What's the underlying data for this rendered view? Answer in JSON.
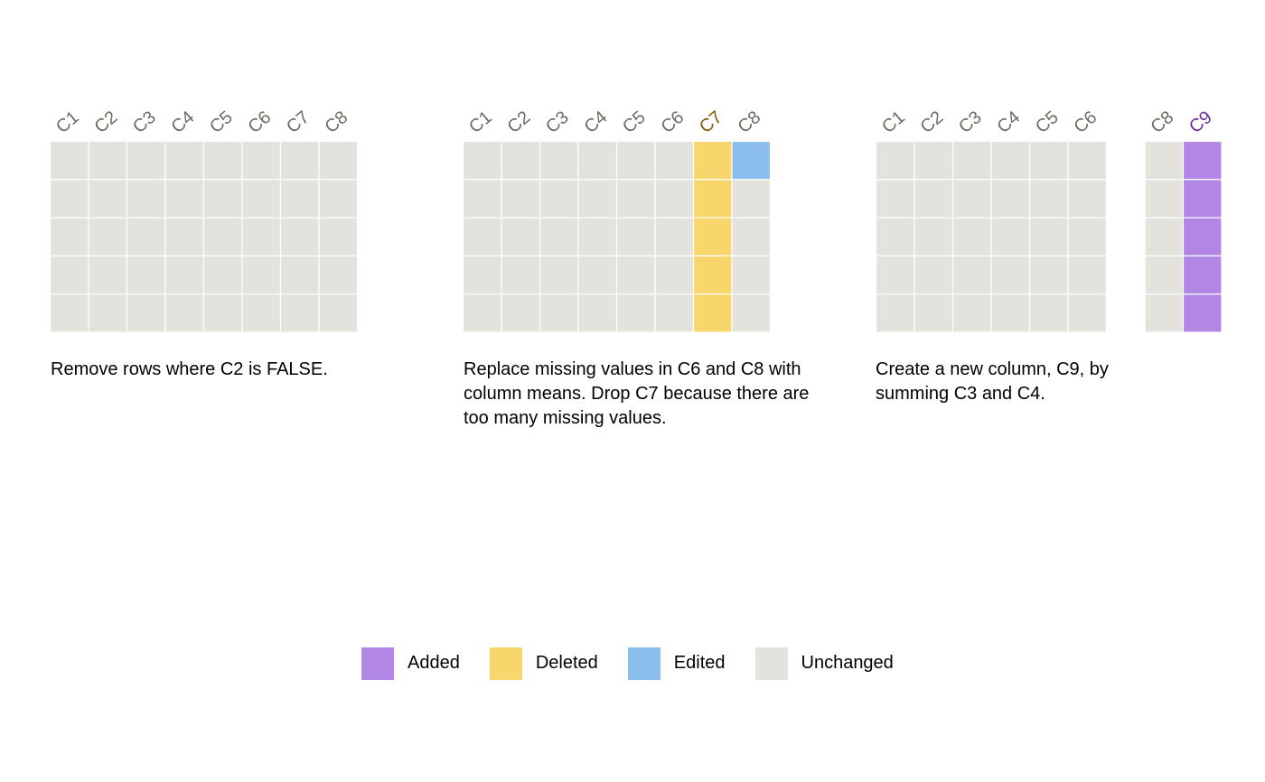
{
  "colors": {
    "added": "#b186e4",
    "deleted": "#f8d66c",
    "edited": "#8bbdee",
    "unchanged": "#e4e2dd",
    "header_default": "#6e6b62",
    "header_deleted": "#7a5f00",
    "header_added": "#6f2a9d"
  },
  "panels": [
    {
      "caption": "Remove rows where C2 is FALSE.",
      "columns": [
        {
          "name": "C1",
          "status": "unchanged"
        },
        {
          "name": "C2",
          "status": "unchanged"
        },
        {
          "name": "C3",
          "status": "unchanged"
        },
        {
          "name": "C4",
          "status": "unchanged"
        },
        {
          "name": "C5",
          "status": "unchanged"
        },
        {
          "name": "C6",
          "status": "unchanged"
        },
        {
          "name": "C7",
          "status": "unchanged"
        },
        {
          "name": "C8",
          "status": "unchanged"
        }
      ],
      "rows": 5
    },
    {
      "caption": "Replace missing values in C6 and C8 with column means. Drop C7 because there are too many missing values.",
      "columns": [
        {
          "name": "C1",
          "status": "unchanged"
        },
        {
          "name": "C2",
          "status": "unchanged"
        },
        {
          "name": "C3",
          "status": "unchanged"
        },
        {
          "name": "C4",
          "status": "unchanged"
        },
        {
          "name": "C5",
          "status": "unchanged"
        },
        {
          "name": "C6",
          "status": "unchanged"
        },
        {
          "name": "C7",
          "status": "deleted"
        },
        {
          "name": "C8",
          "status": "unchanged",
          "edited_rows": [
            0
          ]
        }
      ],
      "rows": 5
    },
    {
      "caption": "Create a new column, C9, by summing C3 and C4.",
      "columns": [
        {
          "name": "C1",
          "status": "unchanged"
        },
        {
          "name": "C2",
          "status": "unchanged"
        },
        {
          "name": "C3",
          "status": "unchanged"
        },
        {
          "name": "C4",
          "status": "unchanged"
        },
        {
          "name": "C5",
          "status": "unchanged"
        },
        {
          "name": "C6",
          "status": "unchanged"
        },
        {
          "name": "",
          "status": "gap"
        },
        {
          "name": "C8",
          "status": "unchanged"
        },
        {
          "name": "C9",
          "status": "added"
        }
      ],
      "rows": 5
    }
  ],
  "legend": [
    {
      "label": "Added",
      "key": "added"
    },
    {
      "label": "Deleted",
      "key": "deleted"
    },
    {
      "label": "Edited",
      "key": "edited"
    },
    {
      "label": "Unchanged",
      "key": "unchanged"
    }
  ]
}
